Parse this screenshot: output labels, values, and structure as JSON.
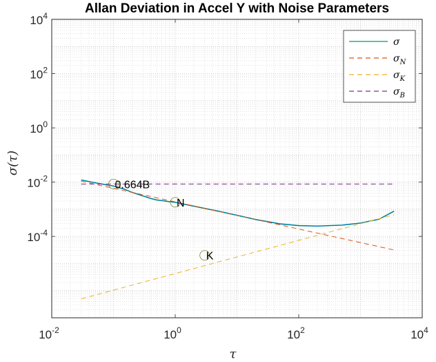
{
  "chart_data": {
    "type": "line",
    "title": "Allan Deviation in Accel Y with Noise Parameters",
    "xlabel": "τ",
    "ylabel": "σ(τ)",
    "xscale": "log",
    "yscale": "log",
    "xlim": [
      0.01,
      10000
    ],
    "ylim": [
      1e-07,
      10000
    ],
    "grid": "major and minor",
    "legend_position": "top-right",
    "x_ticks": [
      {
        "base": "10",
        "exp": "-2",
        "value": 0.01
      },
      {
        "base": "10",
        "exp": "0",
        "value": 1
      },
      {
        "base": "10",
        "exp": "2",
        "value": 100
      },
      {
        "base": "10",
        "exp": "4",
        "value": 10000
      }
    ],
    "y_ticks": [
      {
        "base": "10",
        "exp": "-4",
        "value": 0.0001
      },
      {
        "base": "10",
        "exp": "-2",
        "value": 0.01
      },
      {
        "base": "10",
        "exp": "0",
        "value": 1
      },
      {
        "base": "10",
        "exp": "2",
        "value": 100
      },
      {
        "base": "10",
        "exp": "4",
        "value": 10000
      }
    ],
    "series": [
      {
        "name": "σ",
        "legend_main": "σ",
        "legend_sub": "",
        "color": "#0072BD",
        "secondary_color": "#009C6B",
        "dash": "solid",
        "x": [
          0.03,
          0.05,
          0.08,
          0.1,
          0.15,
          0.2,
          0.3,
          0.4,
          0.5,
          0.6,
          0.8,
          1,
          2,
          5,
          10,
          20,
          50,
          100,
          200,
          500,
          1000,
          2000,
          3500
        ],
        "y": [
          0.012,
          0.0095,
          0.0078,
          0.0072,
          0.0055,
          0.0042,
          0.0031,
          0.0025,
          0.0022,
          0.0021,
          0.0019,
          0.0018,
          0.0013,
          0.00085,
          0.0006,
          0.00042,
          0.00029,
          0.00025,
          0.00024,
          0.00026,
          0.00031,
          0.00043,
          0.00085
        ]
      },
      {
        "name": "σ_N",
        "legend_main": "σ",
        "legend_sub": "N",
        "color": "#D95319",
        "dash": "dashed",
        "x": [
          0.03,
          3500
        ],
        "y": [
          0.0108,
          3.16e-05
        ]
      },
      {
        "name": "σ_K",
        "legend_main": "σ",
        "legend_sub": "K",
        "color": "#EDB120",
        "dash": "dashed",
        "x": [
          0.03,
          3500
        ],
        "y": [
          5e-07,
          0.00063
        ]
      },
      {
        "name": "σ_B",
        "legend_main": "σ",
        "legend_sub": "B",
        "color": "#7E2F8E",
        "dash": "dashed",
        "x": [
          0.03,
          3500
        ],
        "y": [
          0.0085,
          0.0085
        ]
      }
    ],
    "annotations": [
      {
        "label": "0.664B",
        "x": 0.1,
        "y": 0.0085
      },
      {
        "label": "N",
        "x": 1,
        "y": 0.0018
      },
      {
        "label": "K",
        "x": 3,
        "y": 2e-05
      }
    ]
  }
}
